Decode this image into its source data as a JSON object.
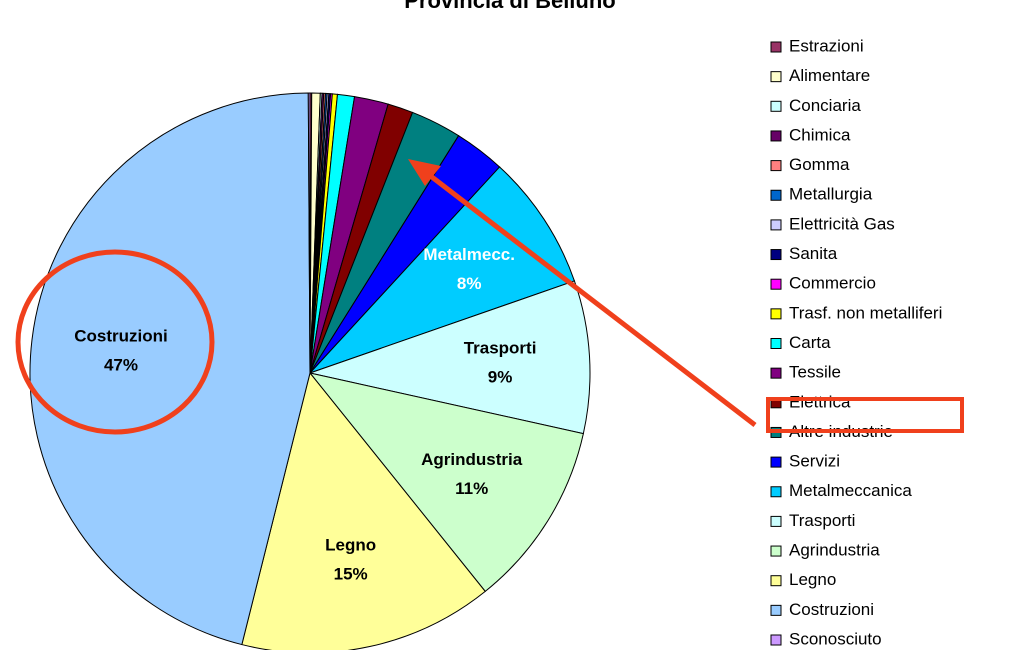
{
  "chart_data": {
    "type": "pie",
    "title": "Provincia di Belluno",
    "labels": [
      "Estrazioni",
      "Alimentare",
      "Conciaria",
      "Chimica",
      "Gomma",
      "Metallurgia",
      "Elettricità Gas",
      "Sanita",
      "Commercio",
      "Trasf. non metalliferi",
      "Carta",
      "Tessile",
      "Elettrica",
      "Altre industrie",
      "Servizi",
      "Metalmeccanica",
      "Trasporti",
      "Agrindustria",
      "Legno",
      "Costruzioni",
      "Sconosciuto"
    ],
    "values": [
      0.1,
      0.5,
      0.1,
      0.1,
      0.1,
      0.1,
      0.1,
      0.1,
      0.1,
      0.3,
      1,
      2,
      1.5,
      3,
      3,
      8,
      9,
      11,
      15,
      47,
      0.1
    ],
    "colors": [
      "#993366",
      "#ffffcc",
      "#ccffff",
      "#660066",
      "#ff8080",
      "#0066cc",
      "#ccccff",
      "#000080",
      "#ff00ff",
      "#ffff00",
      "#00ffff",
      "#800080",
      "#800000",
      "#008080",
      "#0000ff",
      "#00ccff",
      "#ccffff",
      "#ccffcc",
      "#ffff99",
      "#99ccff",
      "#cc99ff"
    ],
    "slice_labels": [
      null,
      null,
      null,
      null,
      null,
      null,
      null,
      null,
      null,
      null,
      null,
      null,
      null,
      null,
      null,
      "Metalmecc.",
      "Trasporti",
      "Agrindustria",
      "Legno",
      "Costruzioni",
      null
    ],
    "value_labels": [
      null,
      null,
      null,
      null,
      null,
      null,
      null,
      null,
      null,
      null,
      null,
      null,
      null,
      null,
      null,
      "8%",
      "9%",
      "11%",
      "15%",
      "47%",
      null
    ]
  }
}
